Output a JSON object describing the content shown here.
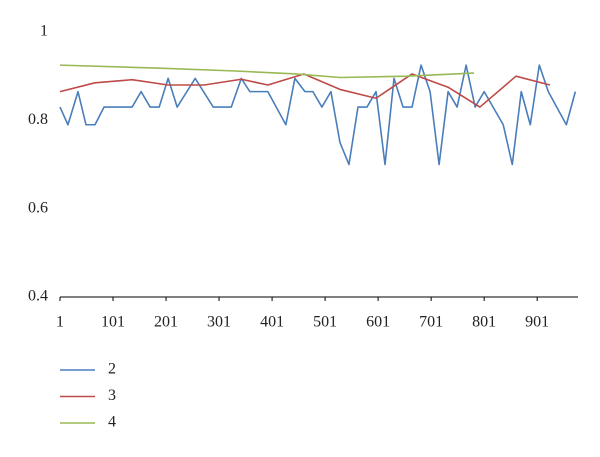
{
  "chart_data": {
    "type": "line",
    "xlim": [
      1,
      978
    ],
    "xticks": [
      1,
      101,
      201,
      301,
      401,
      501,
      601,
      701,
      801,
      901
    ],
    "ylim": [
      0.4,
      1
    ],
    "yticks": [
      0.4,
      0.6,
      0.8,
      1
    ],
    "legend": "bottom-left",
    "series": [
      {
        "name": "2",
        "color": "#4a7ebb",
        "x": [
          1,
          16,
          35,
          50,
          67,
          84,
          118,
          137,
          154,
          171,
          188,
          205,
          222,
          256,
          290,
          324,
          343,
          359,
          393,
          427,
          444,
          463,
          478,
          495,
          512,
          529,
          546,
          563,
          580,
          597,
          614,
          631,
          648,
          665,
          682,
          699,
          716,
          733,
          750,
          767,
          784,
          801,
          837,
          854,
          871,
          888,
          905,
          922,
          956,
          973
        ],
        "values": [
          0.83,
          0.79,
          0.865,
          0.79,
          0.79,
          0.83,
          0.83,
          0.83,
          0.865,
          0.83,
          0.83,
          0.895,
          0.83,
          0.895,
          0.83,
          0.83,
          0.895,
          0.865,
          0.865,
          0.79,
          0.895,
          0.865,
          0.865,
          0.83,
          0.865,
          0.75,
          0.7,
          0.83,
          0.83,
          0.865,
          0.7,
          0.895,
          0.83,
          0.83,
          0.925,
          0.865,
          0.7,
          0.865,
          0.83,
          0.925,
          0.83,
          0.865,
          0.79,
          0.7,
          0.865,
          0.79,
          0.925,
          0.865,
          0.79,
          0.865
        ]
      },
      {
        "name": "3",
        "color": "#be4b48",
        "x": [
          1,
          67,
          137,
          205,
          273,
          343,
          393,
          461,
          529,
          597,
          665,
          733,
          793,
          861,
          925
        ],
        "values": [
          0.865,
          0.885,
          0.892,
          0.88,
          0.88,
          0.893,
          0.88,
          0.905,
          0.87,
          0.85,
          0.905,
          0.875,
          0.83,
          0.9,
          0.88
        ]
      },
      {
        "name": "4",
        "color": "#98b954",
        "x": [
          1,
          190,
          326,
          446,
          529,
          654,
          782
        ],
        "values": [
          0.925,
          0.918,
          0.912,
          0.905,
          0.897,
          0.9,
          0.907
        ]
      }
    ]
  }
}
